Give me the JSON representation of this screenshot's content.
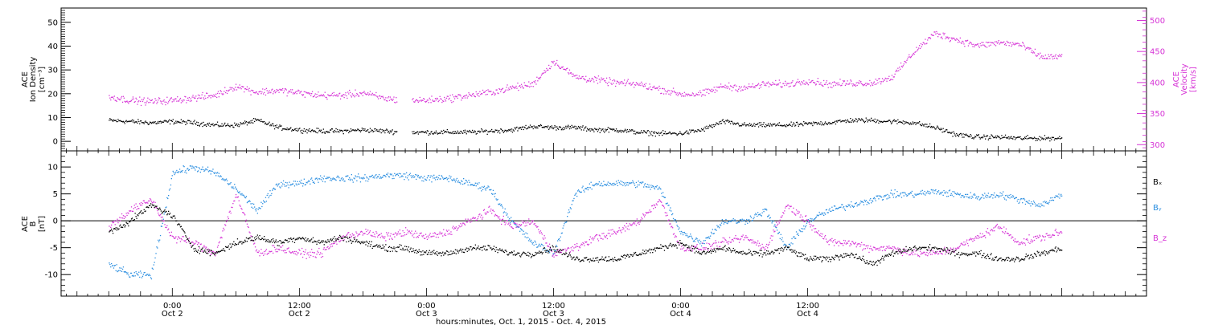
{
  "colors": {
    "black": "#000000",
    "magenta": "#d633d6",
    "blue": "#2a8ee0",
    "axis": "#000000"
  },
  "chart_data": [
    {
      "type": "scatter",
      "panel": "top",
      "ylabel_left": [
        "ACE",
        "Ion Density",
        "[cm⁻³]"
      ],
      "ylabel_right": [
        "ACE",
        "Velocity",
        "[km/s]"
      ],
      "ylim_left": [
        -4,
        56
      ],
      "ylim_right": [
        290,
        520
      ],
      "yticks_left": [
        0,
        10,
        20,
        30,
        40,
        50
      ],
      "yticks_right": [
        300,
        350,
        400,
        450,
        500
      ],
      "series": [
        {
          "axis": "left",
          "color": "black",
          "x": [
            -6,
            -4,
            -2,
            0,
            2,
            4,
            6,
            8,
            10,
            12,
            14,
            16,
            18,
            20,
            22,
            24,
            26,
            28,
            30,
            32,
            34,
            36,
            38,
            40,
            42,
            44,
            46,
            48,
            50,
            52,
            54,
            56,
            58,
            60,
            62,
            64,
            66,
            68,
            70,
            72,
            74,
            76,
            78,
            80,
            82,
            84
          ],
          "y": [
            9,
            8.5,
            8,
            8.5,
            8,
            7,
            7,
            9,
            6,
            5,
            4.5,
            4.5,
            5,
            4.5,
            4,
            4,
            4,
            4,
            4.5,
            5,
            6.5,
            6,
            6,
            5,
            5,
            4,
            3.5,
            3.5,
            5,
            8.5,
            7,
            7,
            7,
            7.5,
            8,
            9,
            9,
            8.5,
            8,
            6,
            3,
            2,
            2,
            1.5,
            1.5,
            1.5
          ]
        },
        {
          "axis": "right",
          "color": "magenta",
          "x": [
            -6,
            -4,
            -2,
            0,
            2,
            4,
            6,
            8,
            10,
            12,
            14,
            16,
            18,
            20,
            22,
            24,
            26,
            28,
            30,
            32,
            34,
            36,
            38,
            40,
            42,
            44,
            46,
            48,
            50,
            52,
            54,
            56,
            58,
            60,
            62,
            64,
            66,
            68,
            70,
            72,
            74,
            76,
            78,
            80,
            82,
            84
          ],
          "y": [
            378,
            372,
            370,
            372,
            376,
            380,
            395,
            385,
            388,
            384,
            380,
            380,
            384,
            375,
            372,
            372,
            375,
            380,
            385,
            392,
            398,
            435,
            410,
            405,
            400,
            398,
            390,
            382,
            382,
            395,
            392,
            398,
            398,
            404,
            398,
            400,
            400,
            410,
            450,
            480,
            470,
            460,
            465,
            462,
            442,
            442
          ]
        }
      ]
    },
    {
      "type": "scatter",
      "panel": "bottom",
      "ylabel_left": [
        "ACE",
        "B",
        "[nT]"
      ],
      "ylim": [
        -14,
        13
      ],
      "yticks": [
        -10,
        -5,
        0,
        5,
        10
      ],
      "hline": 0,
      "legend": [
        "Bₓ",
        "Bᵧ",
        "B_z"
      ],
      "series": [
        {
          "name": "Bₓ",
          "color": "black",
          "x": [
            -6,
            -4,
            -2,
            0,
            2,
            4,
            6,
            8,
            10,
            12,
            14,
            16,
            18,
            20,
            22,
            24,
            26,
            28,
            30,
            32,
            34,
            36,
            38,
            40,
            42,
            44,
            46,
            48,
            50,
            52,
            54,
            56,
            58,
            60,
            62,
            64,
            66,
            68,
            70,
            72,
            74,
            76,
            78,
            80,
            82,
            84
          ],
          "y": [
            -2,
            0,
            3,
            1,
            -5,
            -6,
            -4,
            -3,
            -4,
            -3,
            -4,
            -3,
            -4,
            -5,
            -5,
            -6,
            -6,
            -5,
            -5,
            -6,
            -6,
            -5,
            -7,
            -7,
            -7,
            -6,
            -5,
            -4,
            -6,
            -5,
            -6,
            -6,
            -5,
            -7,
            -7,
            -6,
            -8,
            -6,
            -5,
            -5,
            -6,
            -6,
            -7,
            -7,
            -6,
            -5
          ]
        },
        {
          "name": "Bᵧ",
          "color": "blue",
          "x": [
            -6,
            -4,
            -2,
            0,
            2,
            4,
            6,
            8,
            10,
            12,
            14,
            16,
            18,
            20,
            22,
            24,
            26,
            28,
            30,
            32,
            34,
            36,
            38,
            40,
            42,
            44,
            46,
            48,
            50,
            52,
            54,
            56,
            58,
            60,
            62,
            64,
            66,
            68,
            70,
            72,
            74,
            76,
            78,
            80,
            82,
            84
          ],
          "y": [
            -8,
            -10,
            -10,
            9,
            10,
            9,
            6,
            2,
            7,
            7,
            8,
            8,
            8,
            8.5,
            8.5,
            8,
            8,
            7,
            6,
            0,
            -4,
            -6,
            5,
            7,
            7,
            7,
            6,
            -2,
            -4,
            0,
            0,
            2,
            -5,
            0,
            2,
            3,
            4,
            5,
            5,
            5.5,
            5,
            4.5,
            5,
            4,
            3,
            5
          ]
        },
        {
          "name": "B_z",
          "color": "magenta",
          "x": [
            -6,
            -4,
            -2,
            0,
            2,
            4,
            6,
            8,
            10,
            12,
            14,
            16,
            18,
            20,
            22,
            24,
            26,
            28,
            30,
            32,
            34,
            36,
            38,
            40,
            42,
            44,
            46,
            48,
            50,
            52,
            54,
            56,
            58,
            60,
            62,
            64,
            66,
            68,
            70,
            72,
            74,
            76,
            78,
            80,
            82,
            84
          ],
          "y": [
            -1,
            2,
            4,
            -3,
            -4,
            -6,
            5,
            -6,
            -5,
            -6,
            -6,
            -3,
            -2,
            -3,
            -2,
            -3,
            -2,
            0,
            2,
            -1,
            0,
            -6,
            -5,
            -3,
            -2,
            0,
            4,
            -5,
            -5,
            -4,
            -3,
            -5,
            3,
            0,
            -4,
            -4,
            -5,
            -5,
            -6,
            -6,
            -5,
            -3,
            -1,
            -4,
            -3,
            -2
          ]
        }
      ]
    }
  ],
  "xaxis": {
    "xlim": [
      -10.5,
      92
    ],
    "ticks_major": [
      0,
      12,
      24,
      36,
      48,
      60,
      72
    ],
    "tick_labels": [
      {
        "x": 0,
        "line1": "0:00",
        "line2": "Oct 2"
      },
      {
        "x": 12,
        "line1": "12:00",
        "line2": "Oct 2"
      },
      {
        "x": 24,
        "line1": "0:00",
        "line2": "Oct 3"
      },
      {
        "x": 36,
        "line1": "12:00",
        "line2": "Oct 3"
      },
      {
        "x": 48,
        "line1": "0:00",
        "line2": "Oct 4"
      },
      {
        "x": 60,
        "line1": "12:00",
        "line2": "Oct 4"
      }
    ],
    "xlabel": "hours:minutes, Oct.  1, 2015 - Oct.  4, 2015"
  }
}
